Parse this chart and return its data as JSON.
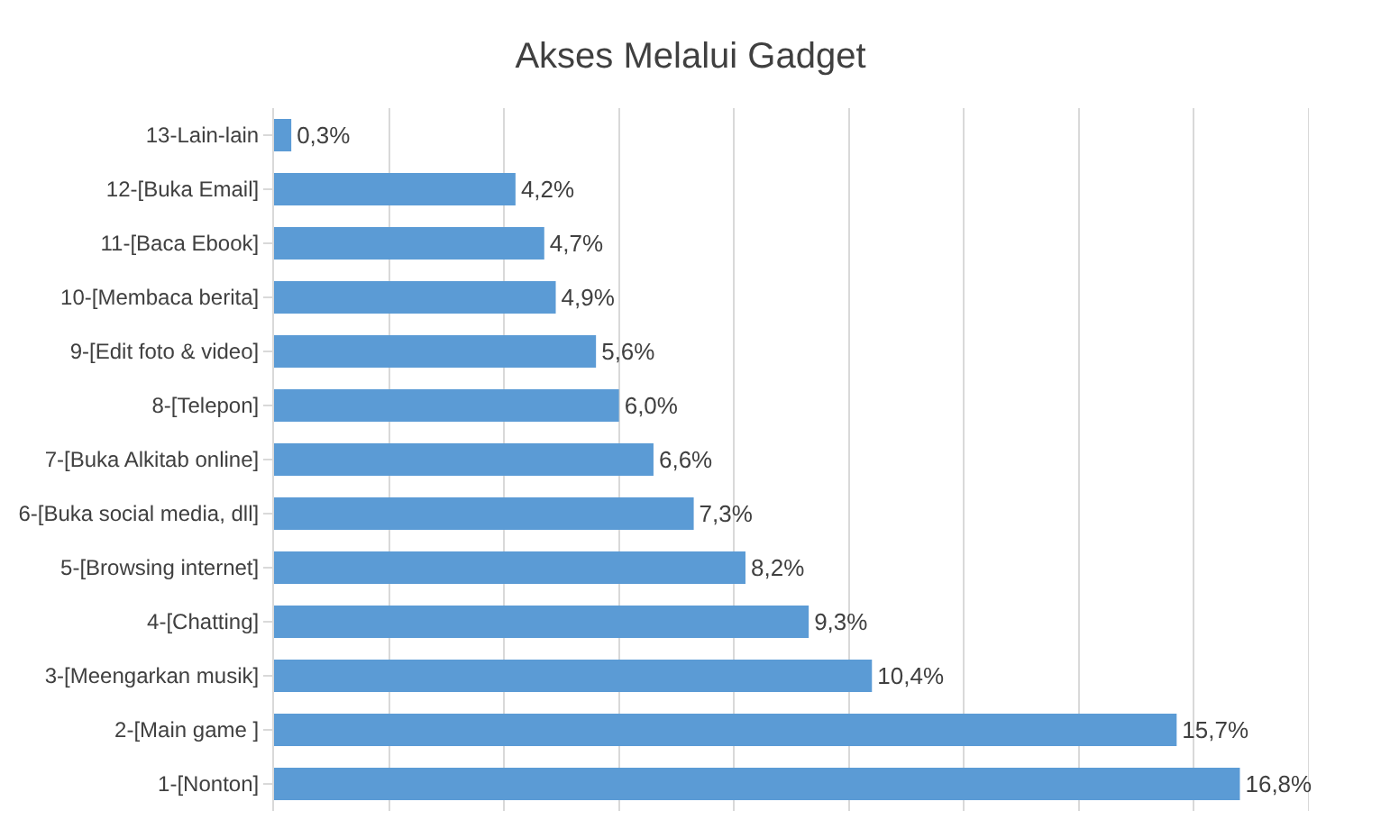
{
  "chart_data": {
    "type": "bar",
    "orientation": "horizontal",
    "title": "Akses Melalui Gadget",
    "categories": [
      "13-Lain-lain",
      "12-[Buka Email]",
      "11-[Baca Ebook]",
      "10-[Membaca berita]",
      "9-[Edit foto & video]",
      "8-[Telepon]",
      "7-[Buka Alkitab online]",
      "6-[Buka social media, dll]",
      "5-[Browsing internet]",
      "4-[Chatting]",
      "3-[Meengarkan musik]",
      "2-[Main game ]",
      "1-[Nonton]"
    ],
    "values": [
      0.3,
      4.2,
      4.7,
      4.9,
      5.6,
      6.0,
      6.6,
      7.3,
      8.2,
      9.3,
      10.4,
      15.7,
      16.8
    ],
    "value_labels": [
      "0,3%",
      "4,2%",
      "4,7%",
      "4,9%",
      "5,6%",
      "6,0%",
      "6,6%",
      "7,3%",
      "8,2%",
      "9,3%",
      "10,4%",
      "15,7%",
      "16,8%"
    ],
    "color": "#5b9bd5",
    "xlim": [
      0,
      18
    ],
    "xticks": [
      {
        "value": 0,
        "label": null
      },
      {
        "value": 2,
        "label": null
      },
      {
        "value": 4,
        "label": null
      },
      {
        "value": 6,
        "label": null
      },
      {
        "value": 8,
        "label": null
      },
      {
        "value": 10,
        "label": null
      },
      {
        "value": 12,
        "label": null
      },
      {
        "value": 14,
        "label": null
      },
      {
        "value": 16,
        "label": null
      },
      {
        "value": 18,
        "label": null
      }
    ],
    "grid": "x",
    "legend": false
  }
}
